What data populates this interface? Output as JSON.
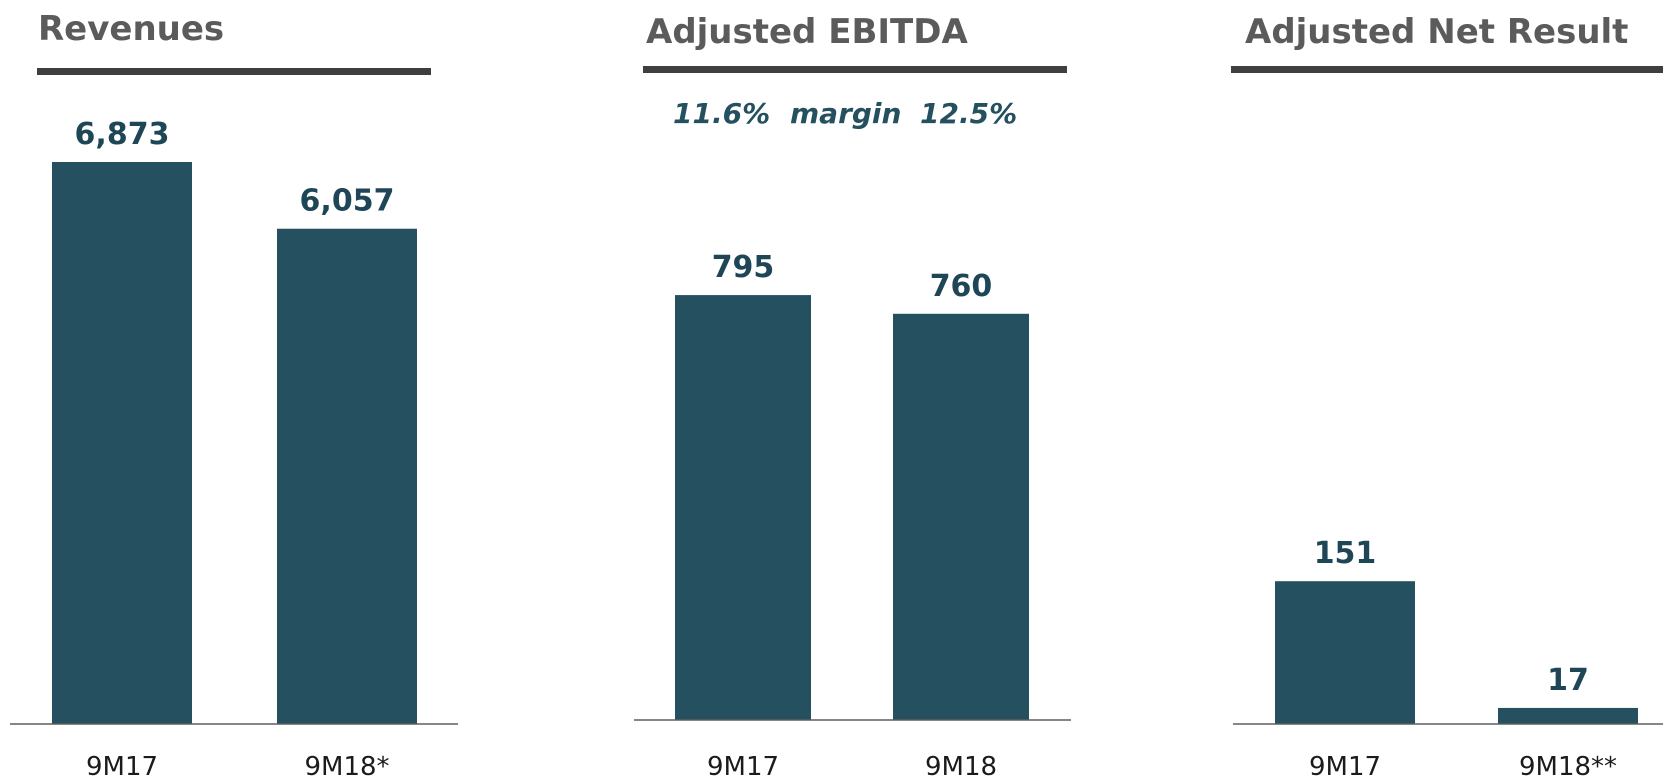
{
  "chart_data": [
    {
      "type": "bar",
      "title": "Revenues",
      "categories": [
        "9M17",
        "9M18*"
      ],
      "values": [
        6873,
        6057
      ],
      "value_labels": [
        "6,873",
        "6,057"
      ],
      "ylim": [
        0,
        6873
      ]
    },
    {
      "type": "bar",
      "title": "Adjusted EBITDA",
      "categories": [
        "9M17",
        "9M18"
      ],
      "values": [
        795,
        760
      ],
      "value_labels": [
        "795",
        "760"
      ],
      "ylim": [
        0,
        1160
      ],
      "margin_note": {
        "left": "11.6%",
        "middle": "margin",
        "right": "12.5%"
      }
    },
    {
      "type": "bar",
      "title": "Adjusted Net Result",
      "categories": [
        "9M17",
        "9M18**"
      ],
      "values": [
        151,
        17
      ],
      "value_labels": [
        "151",
        "17"
      ],
      "ylim": [
        0,
        516
      ]
    }
  ],
  "colors": {
    "bar": "#24505f",
    "title": "#5b5b5b",
    "title_rule": "#3f3f3f"
  }
}
